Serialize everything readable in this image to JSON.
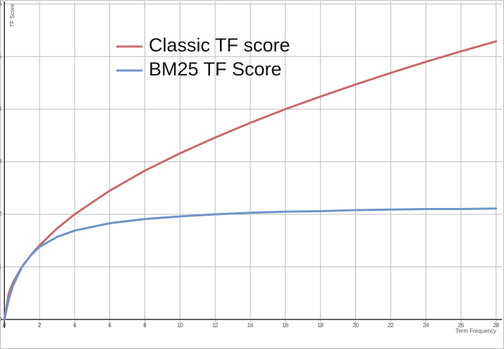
{
  "chart_data": {
    "type": "line",
    "x_label": "Term Frequency",
    "y_label": "TF Score",
    "x": [
      0,
      0.25,
      0.5,
      1,
      1.5,
      2,
      3,
      4,
      6,
      8,
      10,
      12,
      14,
      16,
      18,
      20,
      22,
      24,
      26,
      28
    ],
    "series": [
      {
        "name": "Classic TF score",
        "color": "#c96a6a",
        "values": [
          0,
          0.5,
          0.71,
          1,
          1.22,
          1.41,
          1.73,
          2,
          2.45,
          2.83,
          3.16,
          3.46,
          3.74,
          4,
          4.24,
          4.47,
          4.69,
          4.9,
          5.1,
          5.29
        ]
      },
      {
        "name": "BM25 TF Score",
        "color": "#6f93c8",
        "values": [
          0,
          0.38,
          0.65,
          1,
          1.22,
          1.38,
          1.57,
          1.69,
          1.83,
          1.91,
          1.96,
          2,
          2.03,
          2.05,
          2.06,
          2.08,
          2.09,
          2.1,
          2.1,
          2.11
        ]
      }
    ],
    "xlim": [
      -0.17,
      28.33
    ],
    "ylim": [
      -0.16,
      6.05
    ],
    "xticks": [
      0,
      2,
      4,
      6,
      8,
      10,
      12,
      14,
      16,
      18,
      20,
      22,
      24,
      26,
      28
    ],
    "yticks": [
      0,
      1,
      2,
      3,
      4,
      5,
      6
    ],
    "grid": true
  }
}
